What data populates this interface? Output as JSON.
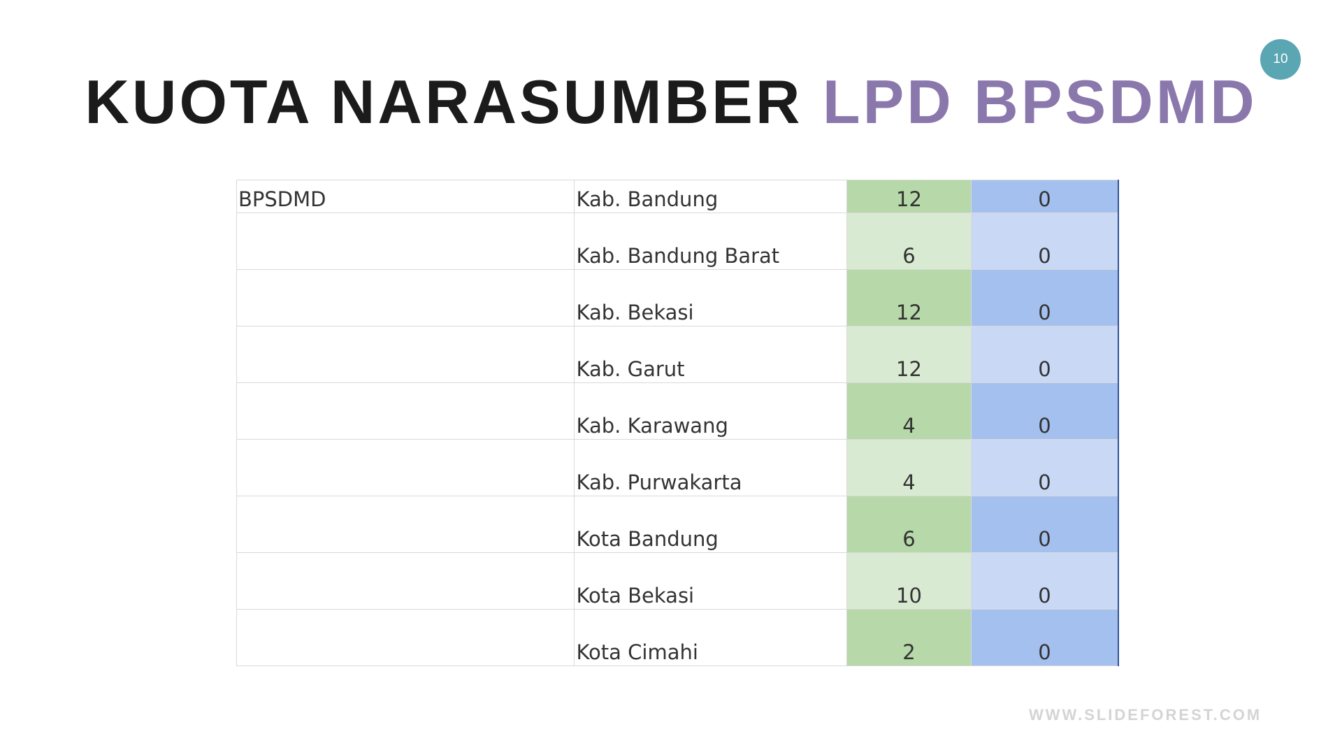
{
  "page_number": "10",
  "title": {
    "dark": "KUOTA NARASUMBER ",
    "accent": "LPD BPSDMD"
  },
  "colors": {
    "accent": "#8a78ad",
    "badge": "#5aa6b3",
    "green_dark": "#b7d8a8",
    "green_light": "#d9ead2",
    "blue_dark": "#a4c0ef",
    "blue_light": "#c8d8f5"
  },
  "table": {
    "rows": [
      {
        "org": "BPSDMD",
        "region": "Kab. Bandung",
        "a": "12",
        "b": "0"
      },
      {
        "org": "",
        "region": "Kab. Bandung Barat",
        "a": "6",
        "b": "0"
      },
      {
        "org": "",
        "region": "Kab. Bekasi",
        "a": "12",
        "b": "0"
      },
      {
        "org": "",
        "region": "Kab. Garut",
        "a": "12",
        "b": "0"
      },
      {
        "org": "",
        "region": "Kab. Karawang",
        "a": "4",
        "b": "0"
      },
      {
        "org": "",
        "region": "Kab. Purwakarta",
        "a": "4",
        "b": "0"
      },
      {
        "org": "",
        "region": "Kota Bandung",
        "a": "6",
        "b": "0"
      },
      {
        "org": "",
        "region": "Kota Bekasi",
        "a": "10",
        "b": "0"
      },
      {
        "org": "",
        "region": "Kota Cimahi",
        "a": "2",
        "b": "0"
      }
    ]
  },
  "footer": {
    "url": "WWW.SLIDEFOREST.COM"
  }
}
